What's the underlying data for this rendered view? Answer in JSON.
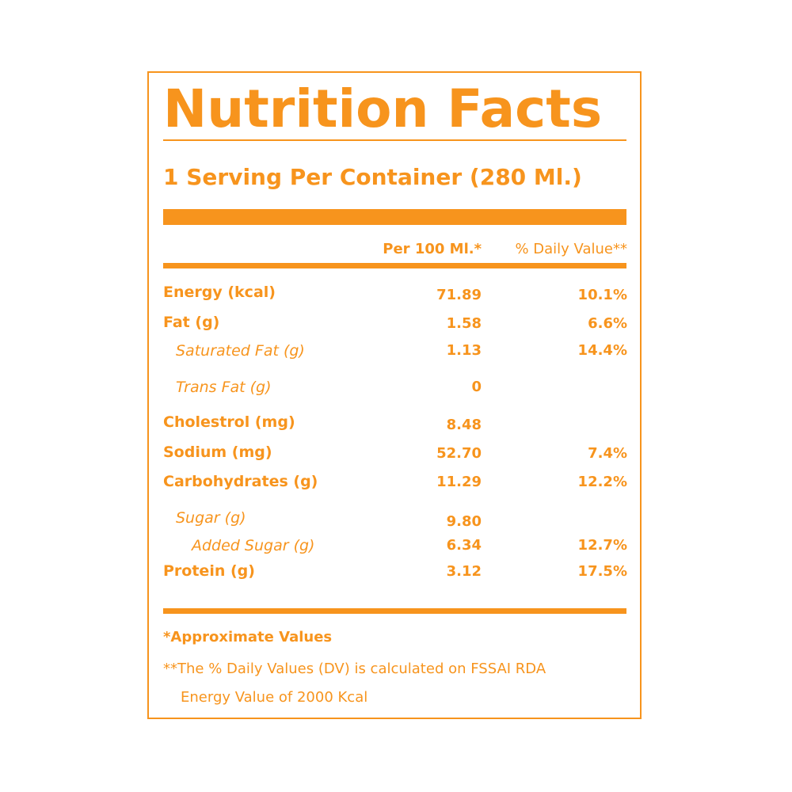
{
  "label": {
    "title": "Nutrition Facts",
    "serving": "1 Serving Per Container (280 Ml.)",
    "columns": {
      "per": "Per 100 Ml.*",
      "daily_value": "% Daily Value**"
    },
    "rows": [
      {
        "name": "Energy (kcal)",
        "value": "71.89",
        "dv": "10.1%"
      },
      {
        "name": "Fat (g)",
        "value": "1.58",
        "dv": "6.6%"
      },
      {
        "name": "Saturated Fat (g)",
        "value": "1.13",
        "dv": "14.4%"
      },
      {
        "name": "Trans Fat (g)",
        "value": "0",
        "dv": ""
      },
      {
        "name": "Cholestrol (mg)",
        "value": "8.48",
        "dv": ""
      },
      {
        "name": "Sodium (mg)",
        "value": "52.70",
        "dv": "7.4%"
      },
      {
        "name": "Carbohydrates (g)",
        "value": "11.29",
        "dv": "12.2%"
      },
      {
        "name": "Sugar (g)",
        "value": "9.80",
        "dv": ""
      },
      {
        "name": "Added Sugar (g)",
        "value": "6.34",
        "dv": "12.7%"
      },
      {
        "name": "Protein (g)",
        "value": "3.12",
        "dv": "17.5%"
      }
    ],
    "footnote_approx": "*Approximate Values",
    "footnote_dv_line1": "**The % Daily Values (DV) is calculated on FSSAI RDA",
    "footnote_dv_line2": "Energy Value of 2000 Kcal"
  },
  "colors": {
    "accent": "#f7941d",
    "background": "#ffffff"
  }
}
